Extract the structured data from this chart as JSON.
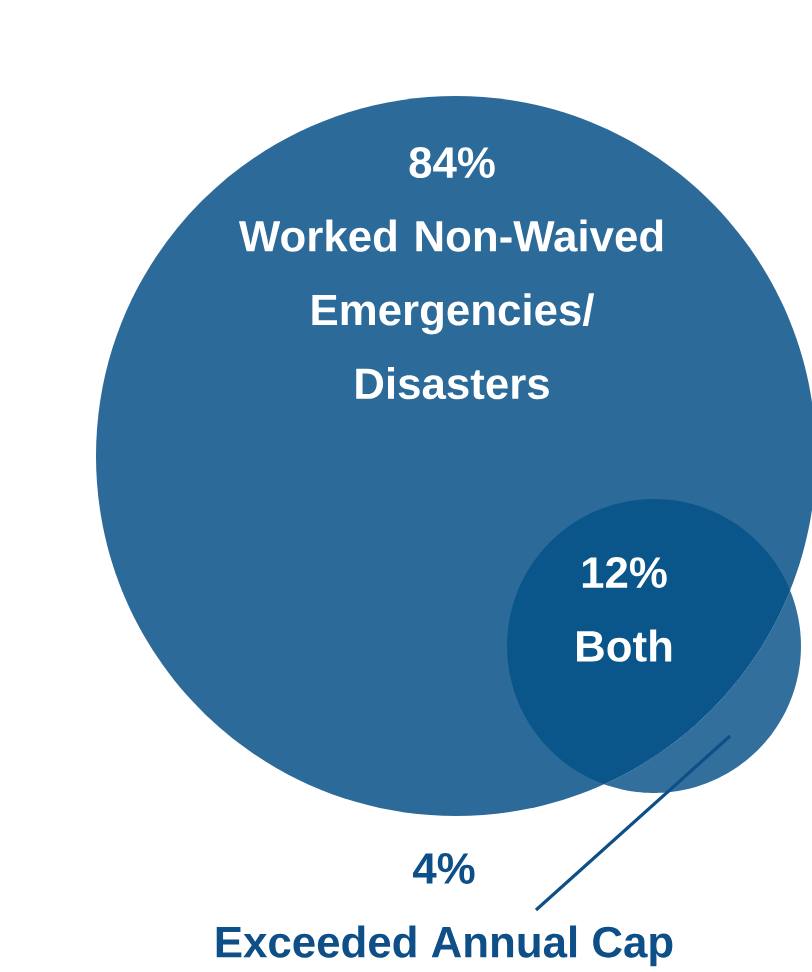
{
  "chart_data": {
    "type": "other",
    "categories": [
      "Worked Non-Waived Emergencies/ Disasters",
      "Both",
      "Exceeded Annual Cap"
    ],
    "values": [
      84,
      12,
      4
    ],
    "value_labels": [
      "84%",
      "12%",
      "4%"
    ],
    "colors": [
      "#2b6a99",
      "#0a568a",
      "#336f9c"
    ]
  }
}
